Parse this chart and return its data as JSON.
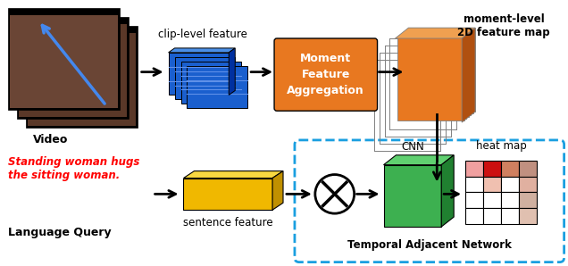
{
  "bg_color": "#ffffff",
  "fig_width": 6.36,
  "fig_height": 2.98,
  "video_label": "Video",
  "query_text_line1": "Standing woman hugs",
  "query_text_line2": "the sitting woman.",
  "query_label": "Language Query",
  "clip_label": "clip-level feature",
  "moment_2d_label": "moment-level\n2D feature map",
  "sentence_label": "sentence feature",
  "cnn_label": "CNN",
  "heatmap_label": "heat map",
  "tan_label": "Temporal Adjacent Network",
  "clip_color_front": "#1a5fce",
  "clip_color_top": "#4a8fe8",
  "clip_color_side": "#0030a0",
  "mfa_color": "#e87820",
  "stack_color_front": "#e87820",
  "stack_color_top": "#f0a050",
  "stack_color_side": "#b05010",
  "sent_color_front": "#f0b800",
  "sent_color_top": "#f8d840",
  "sent_color_side": "#c09000",
  "cnn_color_front": "#3db050",
  "cnn_color_top": "#60d070",
  "cnn_color_side": "#208030",
  "heatmap_colors": [
    [
      "#f0a0a0",
      "#cc1010",
      "#d08060",
      "#c09080"
    ],
    [
      "#ffffff",
      "#f0c0b0",
      "#ffffff",
      "#e0b0a0"
    ],
    [
      "#ffffff",
      "#ffffff",
      "#ffffff",
      "#d0b0a0"
    ],
    [
      "#ffffff",
      "#ffffff",
      "#ffffff",
      "#e0c0b0"
    ]
  ],
  "tan_color": "#1a9fe0"
}
